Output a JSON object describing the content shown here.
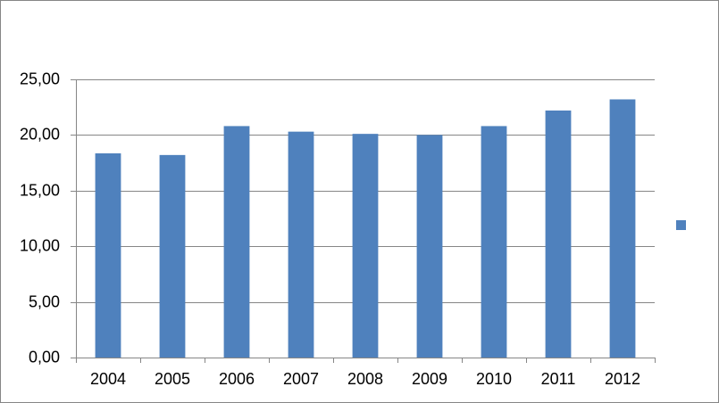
{
  "chart_data": {
    "type": "bar",
    "categories": [
      "2004",
      "2005",
      "2006",
      "2007",
      "2008",
      "2009",
      "2010",
      "2011",
      "2012"
    ],
    "values": [
      18.35,
      18.2,
      20.8,
      20.3,
      20.1,
      20.0,
      20.8,
      22.2,
      23.2
    ],
    "color": "#4f81bd",
    "ylim": [
      0,
      25
    ],
    "yticks": [
      {
        "value": 0,
        "label": "0,00"
      },
      {
        "value": 5,
        "label": "5,00"
      },
      {
        "value": 10,
        "label": "10,00"
      },
      {
        "value": 15,
        "label": "15,00"
      },
      {
        "value": 20,
        "label": "20,00"
      },
      {
        "value": 25,
        "label": "25,00"
      }
    ],
    "grid": true
  }
}
